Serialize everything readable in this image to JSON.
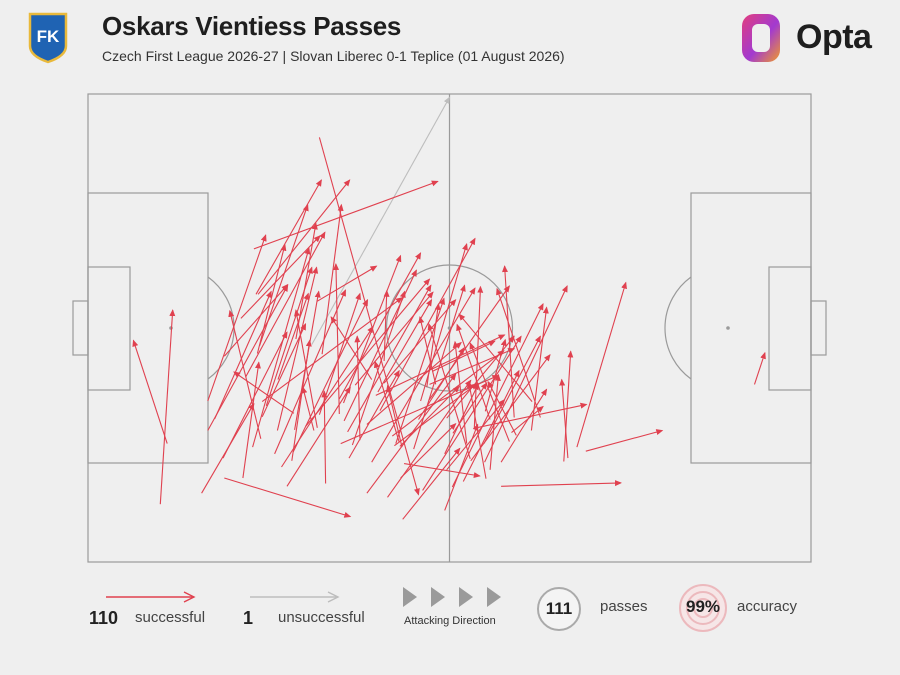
{
  "header": {
    "title": "Oskars Vientiess Passes",
    "subtitle": "Czech First League 2026-27 | Slovan Liberec 0-1 Teplice (01 August 2026)",
    "crest_text": "FK",
    "brand_text": "Opta"
  },
  "colors": {
    "successful": "#e0414f",
    "unsuccessful": "#bdbdbd",
    "pitch_line": "#9a9a9a",
    "background": "#efefef",
    "crest_blue": "#1f63b3",
    "crest_gold": "#e9b93b"
  },
  "legend": {
    "successful_count": "110",
    "successful_label": "successful",
    "unsuccessful_count": "1",
    "unsuccessful_label": "unsuccessful",
    "direction_label": "Attacking Direction",
    "passes_count": "111",
    "passes_label": "passes",
    "accuracy_value": "99%",
    "accuracy_label": "accuracy"
  },
  "chart_data": {
    "type": "pass-map",
    "pitch": {
      "length": 105,
      "width": 68,
      "attacking_direction": "left-to-right"
    },
    "successful": [
      [
        33.6,
        61.7,
        48.0,
        9.8
      ],
      [
        10.5,
        8.4,
        12.3,
        36.6
      ],
      [
        23.9,
        16.7,
        32.1,
        45.6
      ],
      [
        24.1,
        45.5,
        50.8,
        55.3
      ],
      [
        22.9,
        26.9,
        34.4,
        47.9
      ],
      [
        25.1,
        17.9,
        20.6,
        36.5
      ],
      [
        16.5,
        10.0,
        24.1,
        23.0
      ],
      [
        17.4,
        19.1,
        29.0,
        40.2
      ],
      [
        28.1,
        13.8,
        41.4,
        34.2
      ],
      [
        25.3,
        23.3,
        45.6,
        38.4
      ],
      [
        25.9,
        22.7,
        32.5,
        42.8
      ],
      [
        19.8,
        12.2,
        38.1,
        6.6
      ],
      [
        34.0,
        30.2,
        36.8,
        51.9
      ],
      [
        11.5,
        17.2,
        6.6,
        32.2
      ],
      [
        24.4,
        38.9,
        33.9,
        55.5
      ],
      [
        24.7,
        38.9,
        38.0,
        55.5
      ],
      [
        24.9,
        31.4,
        31.9,
        51.9
      ],
      [
        30.2,
        32.4,
        33.1,
        49.2
      ],
      [
        27.1,
        15.7,
        37.4,
        39.5
      ],
      [
        27.5,
        19.1,
        33.2,
        42.8
      ],
      [
        24.6,
        30.3,
        28.6,
        46.1
      ],
      [
        17.4,
        23.4,
        25.8,
        47.5
      ],
      [
        19.6,
        15.1,
        28.9,
        33.4
      ],
      [
        33.6,
        21.4,
        39.5,
        39.0
      ],
      [
        19.8,
        29.9,
        29.0,
        40.3
      ],
      [
        22.2,
        35.4,
        33.7,
        47.4
      ],
      [
        33.3,
        37.9,
        41.9,
        43.0
      ],
      [
        22.5,
        12.2,
        24.8,
        29.0
      ],
      [
        41.2,
        26.5,
        35.3,
        35.6
      ],
      [
        29.8,
        16.0,
        40.6,
        38.1
      ],
      [
        18.4,
        20.8,
        26.6,
        39.3
      ],
      [
        36.5,
        21.5,
        36.0,
        43.3
      ],
      [
        37.1,
        23.1,
        45.4,
        44.5
      ],
      [
        39.5,
        17.7,
        39.1,
        32.8
      ],
      [
        42.1,
        24.7,
        49.9,
        38.1
      ],
      [
        45.9,
        14.3,
        56.9,
        12.5
      ],
      [
        56.4,
        19.5,
        72.4,
        22.9
      ],
      [
        53.0,
        18.7,
        57.9,
        26.0
      ],
      [
        27.6,
        26.5,
        32.0,
        39.0
      ],
      [
        33.3,
        19.5,
        30.2,
        36.6
      ],
      [
        31.6,
        19.7,
        49.6,
        41.1
      ],
      [
        30.0,
        19.2,
        33.5,
        39.3
      ],
      [
        36.5,
        23.7,
        48.3,
        44.9
      ],
      [
        43.5,
        9.4,
        55.6,
        26.4
      ],
      [
        64.4,
        19.1,
        66.6,
        37.0
      ],
      [
        57.7,
        21.9,
        60.6,
        32.3
      ],
      [
        61.5,
        18.8,
        66.1,
        22.6
      ],
      [
        49.6,
        25.8,
        61.9,
        31.0
      ],
      [
        28.9,
        11.0,
        38.1,
        25.4
      ],
      [
        29.6,
        14.7,
        32.2,
        32.2
      ],
      [
        32.8,
        19.1,
        31.2,
        25.4
      ],
      [
        37.9,
        15.1,
        45.2,
        27.8
      ],
      [
        36.7,
        17.2,
        59.6,
        27.1
      ],
      [
        25.3,
        21.1,
        31.6,
        34.6
      ],
      [
        34.5,
        11.4,
        34.3,
        24.8
      ],
      [
        52.1,
        13.4,
        60.5,
        23.6
      ],
      [
        40.5,
        10.0,
        53.4,
        27.3
      ],
      [
        45.2,
        17.4,
        41.7,
        29.1
      ],
      [
        44.5,
        16.9,
        56.5,
        25.9
      ],
      [
        55.0,
        17.2,
        53.3,
        32.0
      ],
      [
        41.8,
        24.2,
        60.5,
        33.0
      ],
      [
        50.0,
        27.7,
        59.1,
        32.1
      ],
      [
        52.1,
        20.9,
        61.9,
        32.8
      ],
      [
        57.5,
        17.2,
        65.7,
        32.8
      ],
      [
        61.2,
        17.5,
        55.5,
        31.8
      ],
      [
        65.7,
        21.0,
        59.4,
        39.7
      ],
      [
        54.5,
        11.7,
        62.6,
        27.8
      ],
      [
        43.0,
        26.0,
        53.4,
        38.1
      ],
      [
        47.3,
        16.4,
        54.7,
        40.2
      ],
      [
        48.3,
        23.4,
        55.0,
        46.2
      ],
      [
        49.5,
        23.5,
        61.2,
        40.1
      ],
      [
        57.6,
        14.5,
        69.6,
        40.1
      ],
      [
        55.6,
        14.7,
        67.1,
        30.1
      ],
      [
        52.9,
        10.9,
        66.1,
        37.5
      ],
      [
        48.6,
        10.4,
        62.9,
        32.8
      ],
      [
        41.2,
        14.5,
        56.2,
        39.8
      ],
      [
        38.4,
        17.0,
        46.0,
        39.3
      ],
      [
        37.7,
        18.9,
        49.8,
        40.2
      ],
      [
        45.7,
        6.2,
        54.0,
        16.5
      ],
      [
        60.0,
        14.5,
        66.6,
        25.1
      ],
      [
        37.2,
        20.5,
        47.7,
        42.4
      ],
      [
        44.7,
        17.2,
        51.7,
        38.3
      ],
      [
        42.4,
        22.0,
        56.2,
        47.0
      ],
      [
        43.0,
        29.2,
        43.4,
        39.4
      ],
      [
        45.3,
        16.8,
        53.9,
        25.5
      ],
      [
        51.8,
        7.5,
        56.6,
        20.0
      ],
      [
        58.4,
        20.7,
        53.6,
        34.5
      ],
      [
        55.5,
        15.0,
        49.5,
        34.6
      ],
      [
        45.4,
        12.2,
        53.4,
        20.1
      ],
      [
        40.5,
        20.0,
        54.2,
        31.9
      ],
      [
        38.8,
        25.7,
        50.1,
        39.2
      ],
      [
        51.8,
        15.7,
        56.7,
        25.9
      ],
      [
        58.4,
        13.4,
        59.6,
        27.2
      ],
      [
        29.9,
        21.6,
        21.2,
        27.6
      ],
      [
        50.5,
        25.8,
        48.2,
        35.6
      ],
      [
        57.8,
        12.1,
        55.3,
        26.2
      ],
      [
        62.2,
        18.4,
        58.1,
        26.2
      ],
      [
        72.3,
        16.1,
        83.4,
        19.1
      ],
      [
        61.9,
        21.0,
        60.5,
        43.0
      ],
      [
        48.0,
        20.7,
        54.6,
        31.1
      ],
      [
        64.5,
        23.3,
        53.9,
        36.0
      ],
      [
        44.2,
        18.3,
        60.4,
        30.7
      ],
      [
        45.6,
        16.7,
        43.5,
        25.6
      ],
      [
        56.1,
        19.4,
        57.0,
        40.0
      ],
      [
        49.2,
        25.4,
        50.9,
        37.5
      ],
      [
        69.7,
        15.1,
        68.8,
        26.5
      ],
      [
        69.1,
        14.6,
        70.1,
        30.6
      ],
      [
        71.0,
        16.7,
        78.1,
        40.6
      ],
      [
        60.0,
        11.0,
        77.4,
        11.5
      ],
      [
        96.8,
        25.8,
        98.3,
        30.4
      ]
    ],
    "unsuccessful": [
      [
        32.5,
        31.6,
        52.5,
        67.5
      ]
    ]
  }
}
